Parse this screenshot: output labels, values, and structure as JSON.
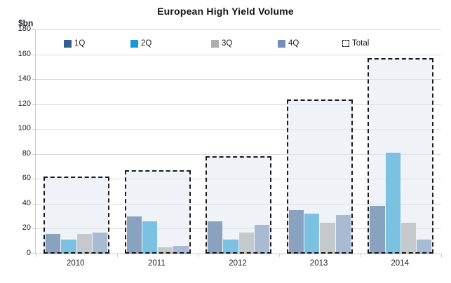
{
  "chart_data": {
    "type": "bar",
    "title": "European High Yield Volume",
    "ylabel": "$bn",
    "categories": [
      "2010",
      "2011",
      "2012",
      "2013",
      "2014"
    ],
    "series": [
      {
        "name": "1Q",
        "color": "#335F93",
        "values": [
          16,
          30,
          26,
          35,
          38
        ]
      },
      {
        "name": "2Q",
        "color": "#199AD6",
        "values": [
          11,
          26,
          11,
          32,
          81
        ]
      },
      {
        "name": "3Q",
        "color": "#ADADAB",
        "values": [
          16,
          5,
          17,
          25,
          25
        ]
      },
      {
        "name": "4Q",
        "color": "#738FB9",
        "values": [
          17,
          6,
          23,
          31,
          11
        ]
      }
    ],
    "total_series": {
      "name": "Total",
      "values": [
        62,
        67,
        78,
        124,
        157
      ],
      "style": "dashed-box",
      "fill_rgba": "rgba(223,229,237,0.5)",
      "border_color": "#1A1A1A"
    },
    "ylim": [
      0,
      180
    ],
    "ytick_step": 20,
    "grid": true,
    "legend_position": "top",
    "legend_labels": [
      "1Q",
      "2Q",
      "3Q",
      "4Q",
      "Total"
    ],
    "axis_color": "#C9C9C9",
    "gridline_color": "#DCDCDC",
    "text_color": "#1E1E24"
  }
}
